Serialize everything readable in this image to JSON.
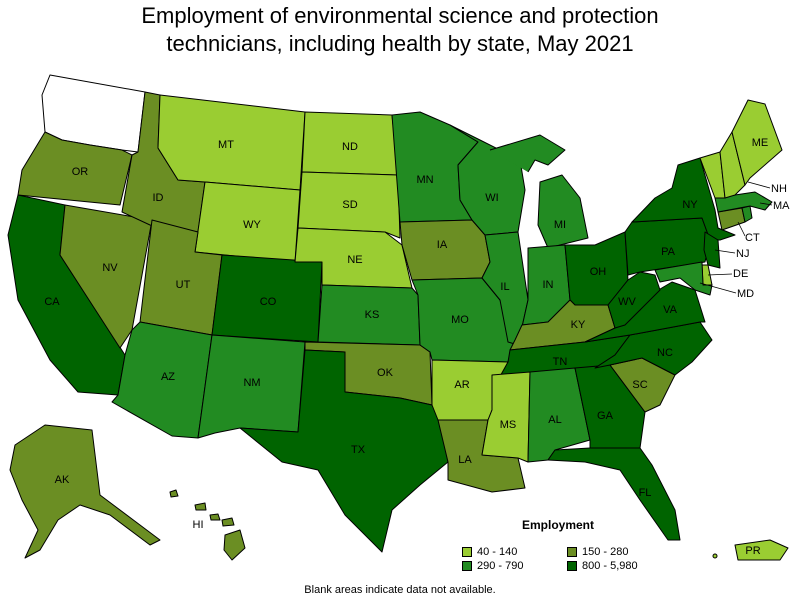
{
  "title": {
    "line1": "Employment of environmental science and protection",
    "line2": "technicians, including health by state, May 2021"
  },
  "legend": {
    "title": "Employment",
    "bins": [
      {
        "label": "40 - 140",
        "color": "#9acd32"
      },
      {
        "label": "150 - 280",
        "color": "#6b8e23"
      },
      {
        "label": "290 - 790",
        "color": "#228b22"
      },
      {
        "label": "800 - 5,980",
        "color": "#006400"
      }
    ]
  },
  "colors": {
    "bin1": "#9acd32",
    "bin2": "#6b8e23",
    "bin3": "#228b22",
    "bin4": "#006400",
    "blank": "#ffffff"
  },
  "footnote": "Blank areas indicate data not available.",
  "states": {
    "WA": {
      "label": "",
      "bin": 0
    },
    "OR": {
      "label": "OR",
      "bin": 2
    },
    "CA": {
      "label": "CA",
      "bin": 4
    },
    "NV": {
      "label": "NV",
      "bin": 2
    },
    "ID": {
      "label": "ID",
      "bin": 2
    },
    "MT": {
      "label": "MT",
      "bin": 1
    },
    "WY": {
      "label": "WY",
      "bin": 1
    },
    "UT": {
      "label": "UT",
      "bin": 2
    },
    "AZ": {
      "label": "AZ",
      "bin": 3
    },
    "CO": {
      "label": "CO",
      "bin": 4
    },
    "NM": {
      "label": "NM",
      "bin": 3
    },
    "ND": {
      "label": "ND",
      "bin": 1
    },
    "SD": {
      "label": "SD",
      "bin": 1
    },
    "NE": {
      "label": "NE",
      "bin": 1
    },
    "KS": {
      "label": "KS",
      "bin": 3
    },
    "OK": {
      "label": "OK",
      "bin": 2
    },
    "TX": {
      "label": "TX",
      "bin": 4
    },
    "MN": {
      "label": "MN",
      "bin": 3
    },
    "IA": {
      "label": "IA",
      "bin": 2
    },
    "MO": {
      "label": "MO",
      "bin": 3
    },
    "AR": {
      "label": "AR",
      "bin": 1
    },
    "LA": {
      "label": "LA",
      "bin": 2
    },
    "WI": {
      "label": "WI",
      "bin": 3
    },
    "IL": {
      "label": "IL",
      "bin": 3
    },
    "MI": {
      "label": "MI",
      "bin": 3
    },
    "IN": {
      "label": "IN",
      "bin": 3
    },
    "OH": {
      "label": "OH",
      "bin": 4
    },
    "KY": {
      "label": "KY",
      "bin": 2
    },
    "TN": {
      "label": "TN",
      "bin": 4
    },
    "MS": {
      "label": "MS",
      "bin": 1
    },
    "AL": {
      "label": "AL",
      "bin": 3
    },
    "GA": {
      "label": "GA",
      "bin": 4
    },
    "FL": {
      "label": "FL",
      "bin": 4
    },
    "SC": {
      "label": "SC",
      "bin": 2
    },
    "NC": {
      "label": "NC",
      "bin": 4
    },
    "VA": {
      "label": "VA",
      "bin": 4
    },
    "WV": {
      "label": "WV",
      "bin": 4
    },
    "PA": {
      "label": "PA",
      "bin": 4
    },
    "NY": {
      "label": "NY",
      "bin": 4
    },
    "VT": {
      "label": "",
      "bin": 1
    },
    "NH": {
      "label": "NH",
      "bin": 1
    },
    "ME": {
      "label": "ME",
      "bin": 1
    },
    "MA": {
      "label": "MA",
      "bin": 3
    },
    "RI": {
      "label": "",
      "bin": 3
    },
    "CT": {
      "label": "CT",
      "bin": 2
    },
    "NJ": {
      "label": "NJ",
      "bin": 4
    },
    "DE": {
      "label": "DE",
      "bin": 1
    },
    "MD": {
      "label": "MD",
      "bin": 3
    },
    "AK": {
      "label": "AK",
      "bin": 2
    },
    "HI": {
      "label": "HI",
      "bin": 2
    },
    "PR": {
      "label": "PR",
      "bin": 1
    }
  }
}
